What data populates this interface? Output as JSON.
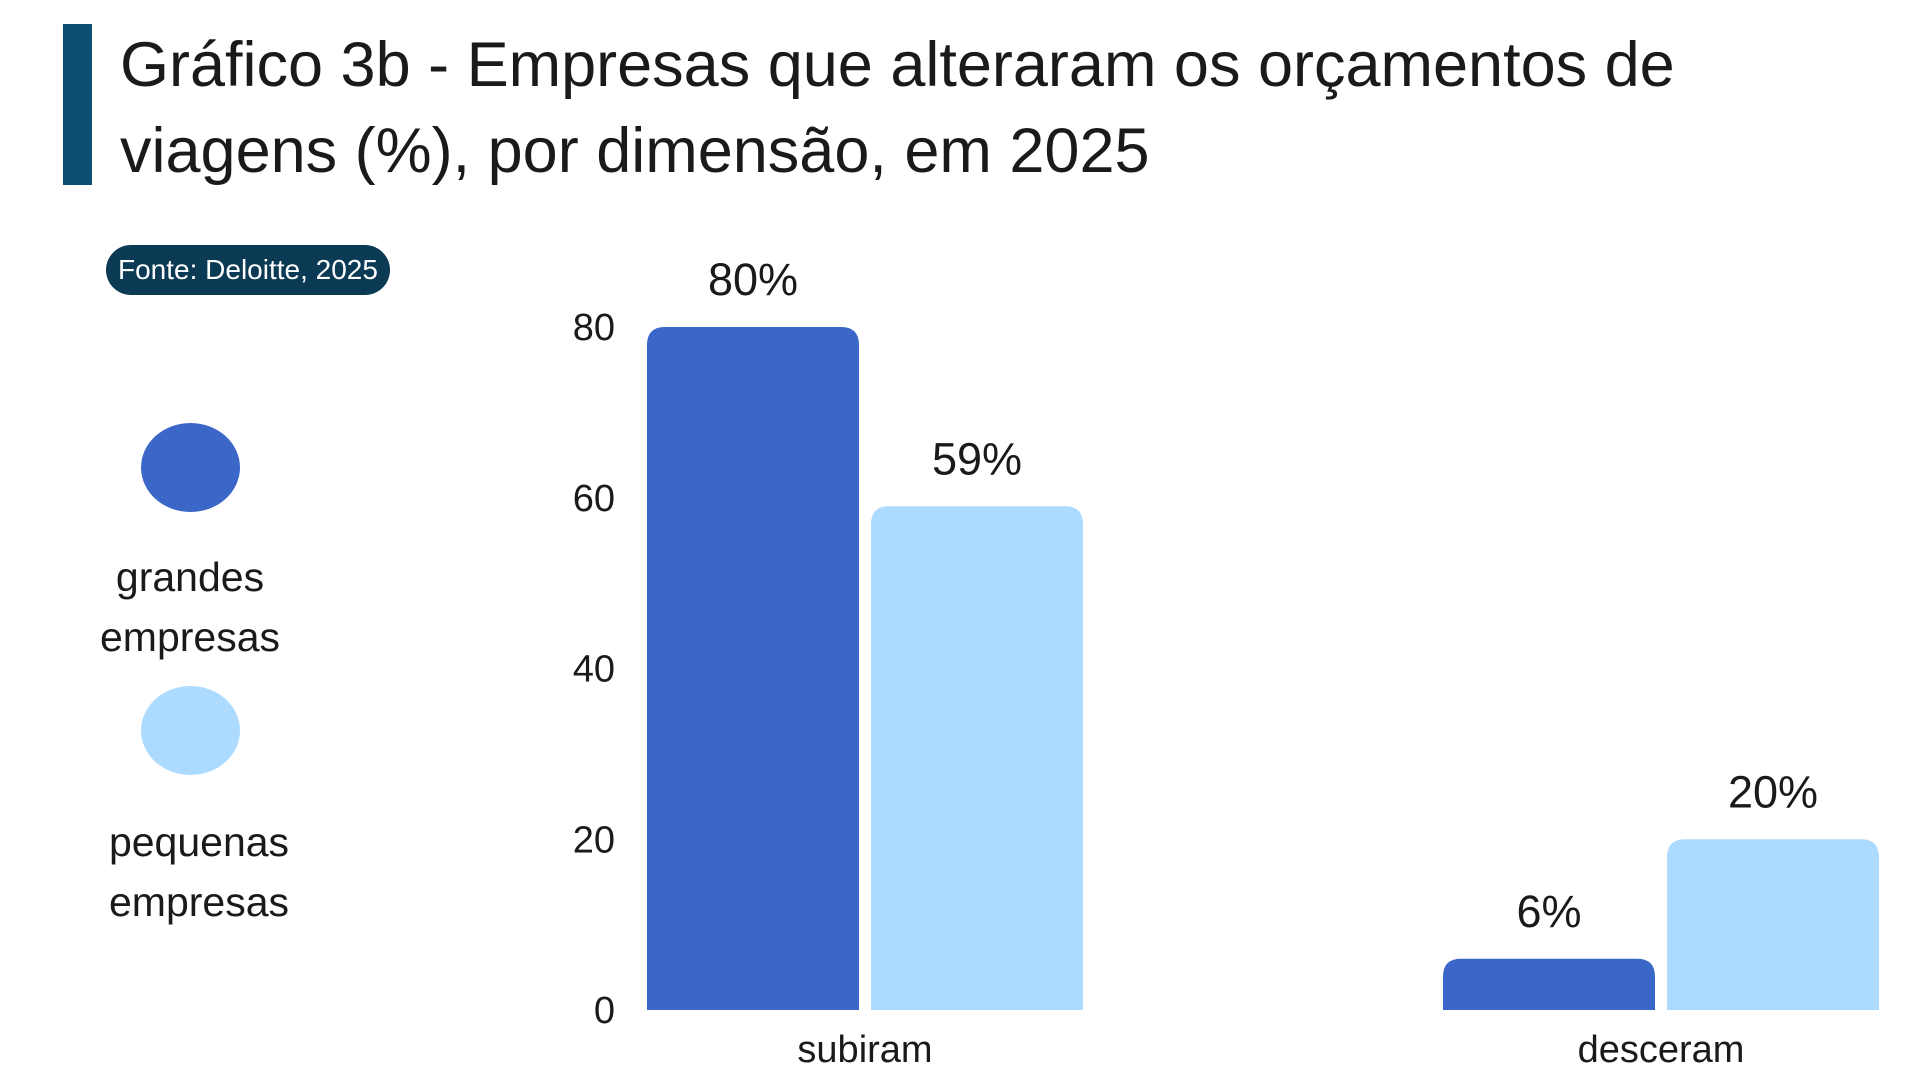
{
  "title": "Gráfico 3b - Empresas que alteraram os orçamentos de viagens (%), por dimensão, em 2025",
  "source": "Fonte: Deloitte, 2025",
  "colors": {
    "accent_bar": "#0b4f72",
    "badge": "#0b3a55",
    "grandes": "#3b67c9",
    "pequenas": "#addaff"
  },
  "legend": [
    {
      "label": "grandes\nempresas",
      "color": "#3b67c9"
    },
    {
      "label": "pequenas\nempresas",
      "color": "#addaff"
    }
  ],
  "chart_data": {
    "type": "bar",
    "categories": [
      "subiram",
      "desceram"
    ],
    "series": [
      {
        "name": "grandes empresas",
        "values": [
          80,
          6
        ],
        "color": "#3b67c9"
      },
      {
        "name": "pequenas empresas",
        "values": [
          59,
          20
        ],
        "color": "#addaff"
      }
    ],
    "value_labels": [
      [
        "80%",
        "6%"
      ],
      [
        "59%",
        "20%"
      ]
    ],
    "title": "Gráfico 3b - Empresas que alteraram os orçamentos de viagens (%), por dimensão, em 2025",
    "xlabel": "",
    "ylabel": "",
    "ylim": [
      0,
      80
    ],
    "yticks": [
      0,
      20,
      40,
      60,
      80
    ],
    "grid": false,
    "legend_position": "left"
  }
}
